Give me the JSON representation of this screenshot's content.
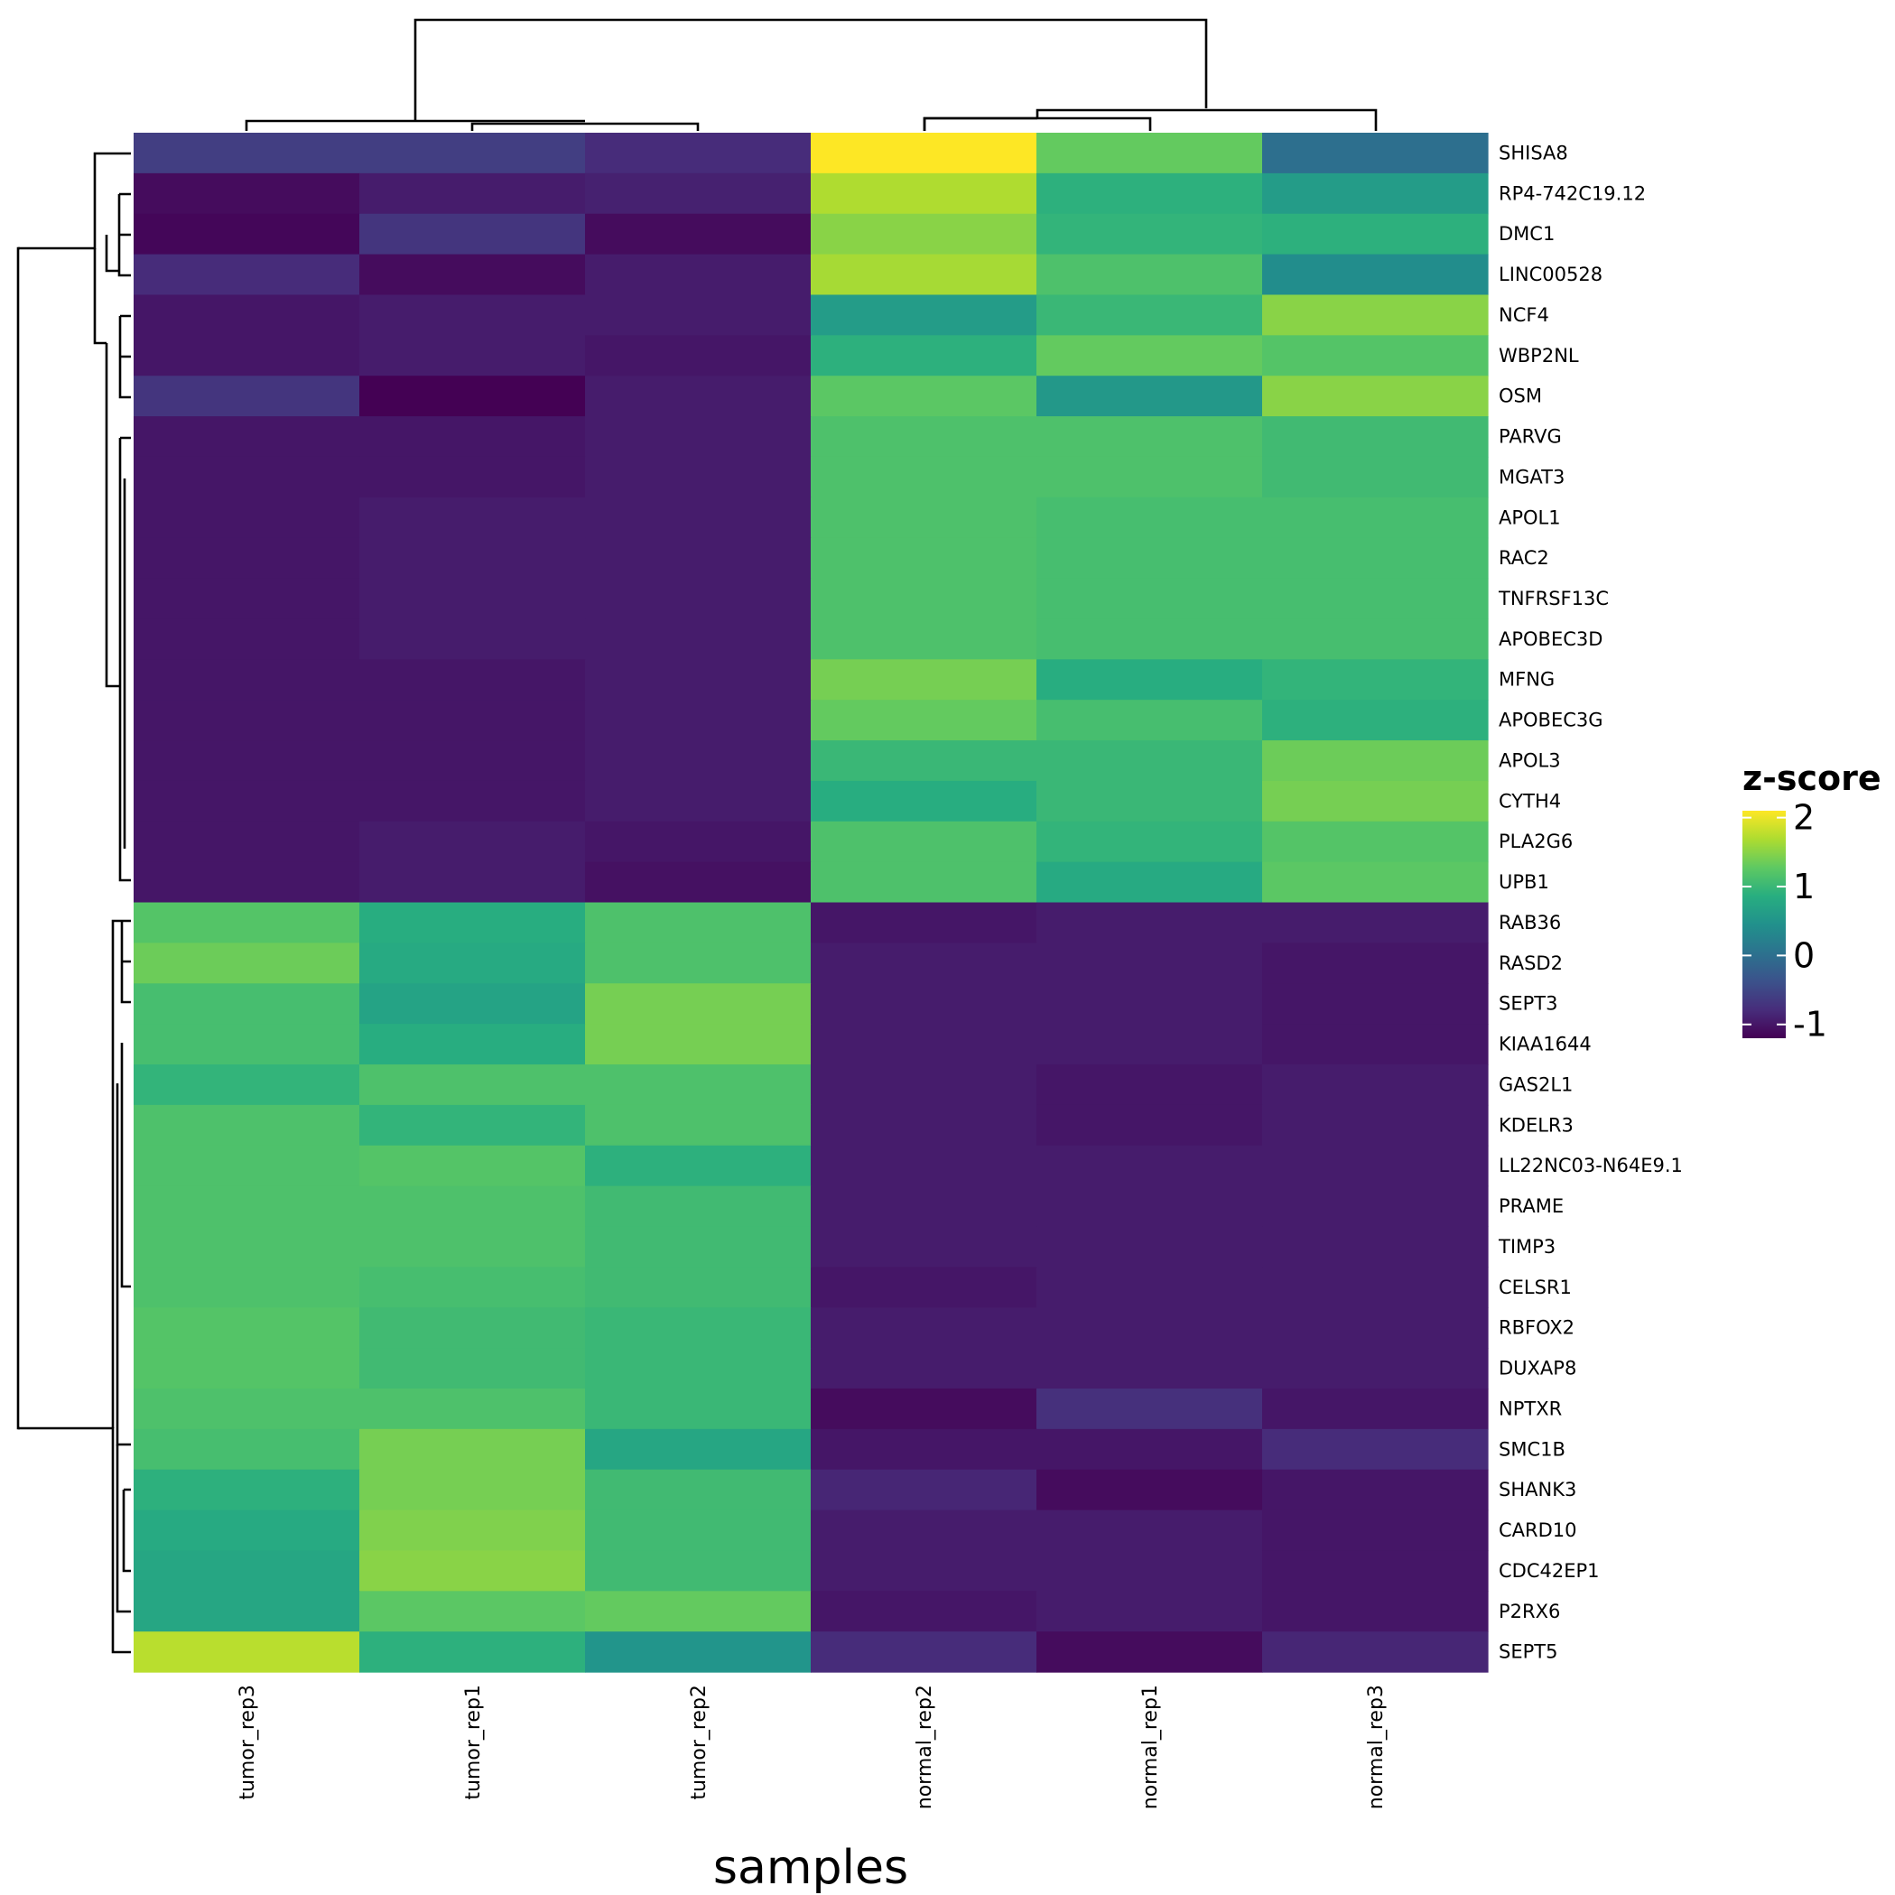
{
  "chart_data": {
    "type": "heatmap",
    "xlabel": "samples",
    "legend": {
      "title": "z-score",
      "placement": "right",
      "ticks": [
        2,
        1,
        0,
        -1
      ],
      "range": [
        -1.2,
        2.1
      ]
    },
    "columns": [
      "tumor_rep3",
      "tumor_rep1",
      "tumor_rep2",
      "normal_rep2",
      "normal_rep1",
      "normal_rep3"
    ],
    "rows": [
      "SHISA8",
      "RP4-742C19.12",
      "DMC1",
      "LINC00528",
      "NCF4",
      "WBP2NL",
      "OSM",
      "PARVG",
      "MGAT3",
      "APOL1",
      "RAC2",
      "TNFRSF13C",
      "APOBEC3D",
      "MFNG",
      "APOBEC3G",
      "APOL3",
      "CYTH4",
      "PLA2G6",
      "UPB1",
      "RAB36",
      "RASD2",
      "SEPT3",
      "KIAA1644",
      "GAS2L1",
      "KDELR3",
      "LL22NC03-N64E9.1",
      "PRAME",
      "TIMP3",
      "CELSR1",
      "RBFOX2",
      "DUXAP8",
      "NPTXR",
      "SMC1B",
      "SHANK3",
      "CARD10",
      "CDC42EP1",
      "P2RX6",
      "SEPT5"
    ],
    "values": [
      [
        -0.6,
        -0.6,
        -0.8,
        2.1,
        1.3,
        0.0
      ],
      [
        -1.1,
        -0.95,
        -0.9,
        1.7,
        0.9,
        0.6
      ],
      [
        -1.15,
        -0.7,
        -1.1,
        1.5,
        0.95,
        0.9
      ],
      [
        -0.8,
        -1.1,
        -0.95,
        1.65,
        1.15,
        0.4
      ],
      [
        -1.0,
        -0.95,
        -0.95,
        0.6,
        1.0,
        1.5
      ],
      [
        -1.0,
        -0.95,
        -1.0,
        0.9,
        1.3,
        1.2
      ],
      [
        -0.7,
        -1.2,
        -0.95,
        1.25,
        0.55,
        1.5
      ],
      [
        -1.0,
        -1.0,
        -0.95,
        1.15,
        1.15,
        1.05
      ],
      [
        -1.0,
        -1.0,
        -0.95,
        1.15,
        1.15,
        1.05
      ],
      [
        -1.0,
        -0.95,
        -0.95,
        1.15,
        1.1,
        1.1
      ],
      [
        -1.0,
        -0.95,
        -0.95,
        1.15,
        1.1,
        1.1
      ],
      [
        -1.0,
        -0.95,
        -0.95,
        1.15,
        1.1,
        1.1
      ],
      [
        -1.0,
        -0.95,
        -0.95,
        1.15,
        1.1,
        1.1
      ],
      [
        -1.0,
        -1.0,
        -0.95,
        1.4,
        0.85,
        0.95
      ],
      [
        -1.0,
        -1.0,
        -0.95,
        1.3,
        1.1,
        0.9
      ],
      [
        -1.0,
        -1.0,
        -0.95,
        1.0,
        1.0,
        1.35
      ],
      [
        -1.0,
        -1.0,
        -0.95,
        0.85,
        1.0,
        1.4
      ],
      [
        -1.0,
        -0.95,
        -1.0,
        1.15,
        0.95,
        1.2
      ],
      [
        -1.0,
        -0.95,
        -1.05,
        1.15,
        0.8,
        1.25
      ],
      [
        1.2,
        0.85,
        1.15,
        -1.0,
        -0.95,
        -0.95
      ],
      [
        1.35,
        0.8,
        1.15,
        -0.95,
        -0.95,
        -1.0
      ],
      [
        1.1,
        0.7,
        1.4,
        -0.95,
        -0.95,
        -1.0
      ],
      [
        1.1,
        0.85,
        1.4,
        -0.95,
        -0.95,
        -1.0
      ],
      [
        0.95,
        1.15,
        1.15,
        -0.95,
        -1.0,
        -0.95
      ],
      [
        1.15,
        0.95,
        1.15,
        -0.95,
        -1.0,
        -0.95
      ],
      [
        1.15,
        1.2,
        0.9,
        -0.95,
        -0.95,
        -0.95
      ],
      [
        1.15,
        1.15,
        1.05,
        -0.95,
        -0.95,
        -0.95
      ],
      [
        1.15,
        1.15,
        1.05,
        -0.95,
        -0.95,
        -0.95
      ],
      [
        1.15,
        1.1,
        1.05,
        -1.0,
        -0.95,
        -0.95
      ],
      [
        1.2,
        1.05,
        1.0,
        -0.95,
        -0.95,
        -0.95
      ],
      [
        1.2,
        1.05,
        1.0,
        -0.95,
        -0.95,
        -0.95
      ],
      [
        1.15,
        1.15,
        1.0,
        -1.1,
        -0.75,
        -1.0
      ],
      [
        1.1,
        1.4,
        0.75,
        -1.0,
        -1.0,
        -0.8
      ],
      [
        0.9,
        1.4,
        1.05,
        -0.85,
        -1.1,
        -1.0
      ],
      [
        0.8,
        1.45,
        1.05,
        -0.95,
        -0.95,
        -1.0
      ],
      [
        0.75,
        1.5,
        1.05,
        -0.95,
        -0.95,
        -1.0
      ],
      [
        0.75,
        1.25,
        1.3,
        -1.0,
        -0.95,
        -1.0
      ],
      [
        1.75,
        0.9,
        0.5,
        -0.8,
        -1.1,
        -0.85
      ]
    ]
  }
}
